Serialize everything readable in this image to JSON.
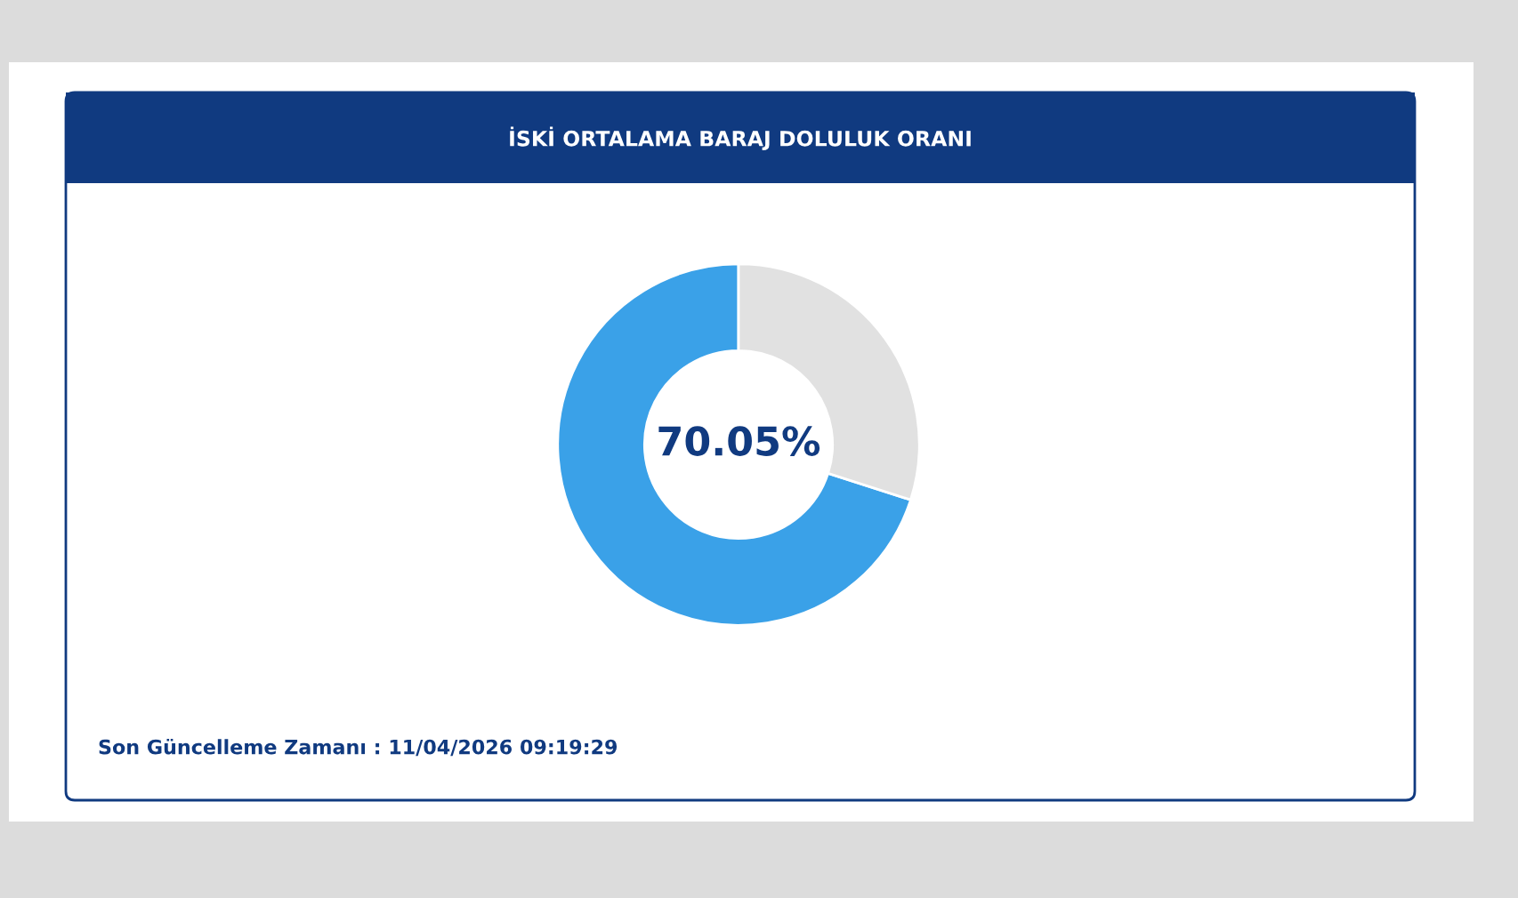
{
  "chart_data": {
    "type": "donut",
    "title": "İSKİ ORTALAMA BARAJ DOLULUK ORANI",
    "categories": [
      null,
      null
    ],
    "values": [
      70.05,
      29.95
    ],
    "colors": [
      "#3aa1e8",
      "#e1e1e1"
    ],
    "annotations": [
      "70.05%",
      "Son Güncelleme Zamanı : 11/04/2026 09:19:29"
    ],
    "legend": false
  }
}
